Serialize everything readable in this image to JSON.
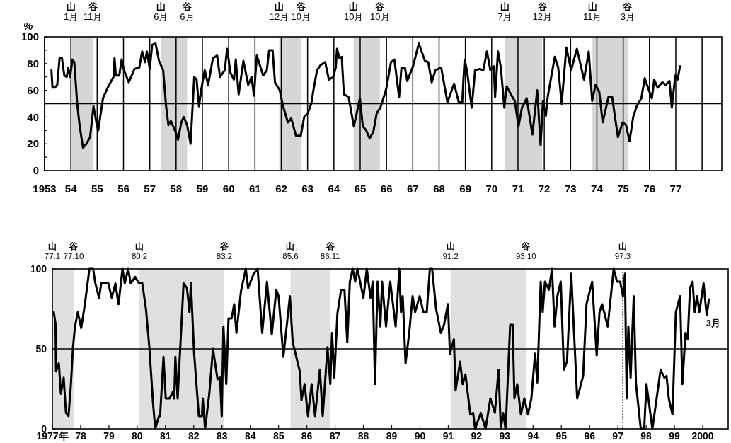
{
  "chart_data": [
    {
      "type": "line",
      "ylabel": "%",
      "xlim": [
        1953,
        1978.75
      ],
      "ylim": [
        0,
        100
      ],
      "grid": "x",
      "xticks": [
        {
          "value": 1953,
          "label": "1953"
        },
        {
          "value": 1954,
          "label": "54"
        },
        {
          "value": 1955,
          "label": "55"
        },
        {
          "value": 1956,
          "label": "56"
        },
        {
          "value": 1957,
          "label": "57"
        },
        {
          "value": 1958,
          "label": "58"
        },
        {
          "value": 1959,
          "label": "59"
        },
        {
          "value": 1960,
          "label": "60"
        },
        {
          "value": 1961,
          "label": "61"
        },
        {
          "value": 1962,
          "label": "62"
        },
        {
          "value": 1963,
          "label": "63"
        },
        {
          "value": 1964,
          "label": "64"
        },
        {
          "value": 1965,
          "label": "65"
        },
        {
          "value": 1966,
          "label": "66"
        },
        {
          "value": 1967,
          "label": "67"
        },
        {
          "value": 1968,
          "label": "68"
        },
        {
          "value": 1969,
          "label": "69"
        },
        {
          "value": 1970,
          "label": "70"
        },
        {
          "value": 1971,
          "label": "71"
        },
        {
          "value": 1972,
          "label": "72"
        },
        {
          "value": 1973,
          "label": "73"
        },
        {
          "value": 1974,
          "label": "74"
        },
        {
          "value": 1975,
          "label": "75"
        },
        {
          "value": 1976,
          "label": "76"
        },
        {
          "value": 1977,
          "label": "77"
        },
        {
          "value": 1978,
          "label": null
        }
      ],
      "yticks": [
        0,
        {
          "value": 10,
          "label": null
        },
        20,
        {
          "value": 30,
          "label": null
        },
        40,
        {
          "value": 50,
          "label": null
        },
        60,
        {
          "value": 70,
          "label": null
        },
        80,
        {
          "value": 90,
          "label": null
        },
        100
      ],
      "ref_lines": [
        {
          "axis": "y",
          "value": 50
        }
      ],
      "annotations": [
        "山\n1月",
        "谷\n11月",
        "山\n6月",
        "谷\n6月",
        "山\n12月",
        "谷\n10月",
        "山\n10月",
        "谷\n10月",
        "山\n7月",
        "谷\n12月",
        "山\n11月",
        "谷\n3月"
      ],
      "bands": [
        {
          "axis": "x",
          "from": 1954.0,
          "to": 1954.83,
          "color": "#d6d6d6"
        },
        {
          "axis": "x",
          "from": 1957.42,
          "to": 1958.42,
          "color": "#d6d6d6"
        },
        {
          "axis": "x",
          "from": 1961.92,
          "to": 1962.75,
          "color": "#d6d6d6"
        },
        {
          "axis": "x",
          "from": 1964.75,
          "to": 1965.75,
          "color": "#d6d6d6"
        },
        {
          "axis": "x",
          "from": 1970.5,
          "to": 1971.92,
          "color": "#d6d6d6"
        },
        {
          "axis": "x",
          "from": 1973.83,
          "to": 1975.17,
          "color": "#d6d6d6"
        }
      ],
      "x": [
        1953.26,
        1953.3,
        1953.39,
        1953.48,
        1953.57,
        1953.66,
        1953.75,
        1953.84,
        1953.9,
        1953.97,
        1954.06,
        1954.13,
        1954.24,
        1954.33,
        1954.46,
        1954.59,
        1954.73,
        1954.86,
        1954.97,
        1955.04,
        1955.22,
        1955.4,
        1955.62,
        1955.66,
        1955.71,
        1955.84,
        1955.93,
        1956.02,
        1956.2,
        1956.42,
        1956.6,
        1956.71,
        1956.82,
        1956.89,
        1957.0,
        1957.09,
        1957.22,
        1957.35,
        1957.51,
        1957.62,
        1957.71,
        1957.8,
        1957.98,
        1958.07,
        1958.2,
        1958.29,
        1958.42,
        1958.55,
        1958.69,
        1958.78,
        1958.87,
        1958.96,
        1959.09,
        1959.22,
        1959.4,
        1959.56,
        1959.67,
        1959.85,
        1959.94,
        1960.07,
        1960.2,
        1960.27,
        1960.38,
        1960.56,
        1960.74,
        1960.87,
        1960.96,
        1961.07,
        1961.31,
        1961.45,
        1961.54,
        1961.67,
        1961.76,
        1961.94,
        1962.07,
        1962.25,
        1962.38,
        1962.56,
        1962.74,
        1962.87,
        1963.01,
        1963.14,
        1963.23,
        1963.36,
        1963.5,
        1963.67,
        1963.81,
        1963.98,
        1964.07,
        1964.12,
        1964.21,
        1964.3,
        1964.38,
        1964.56,
        1964.76,
        1964.99,
        1965.1,
        1965.23,
        1965.36,
        1965.5,
        1965.63,
        1965.77,
        1965.99,
        1966.17,
        1966.3,
        1966.48,
        1966.57,
        1966.7,
        1966.79,
        1967.01,
        1967.23,
        1967.46,
        1967.59,
        1967.72,
        1967.86,
        1968.08,
        1968.32,
        1968.57,
        1968.75,
        1968.88,
        1968.97,
        1969.06,
        1969.24,
        1969.37,
        1969.55,
        1969.68,
        1969.82,
        1969.95,
        1970.08,
        1970.13,
        1970.24,
        1970.35,
        1970.48,
        1970.57,
        1970.7,
        1970.88,
        1971.02,
        1971.15,
        1971.33,
        1971.55,
        1971.73,
        1971.86,
        1971.95,
        1972.06,
        1972.13,
        1972.4,
        1972.53,
        1972.66,
        1972.84,
        1973.02,
        1973.24,
        1973.51,
        1973.69,
        1973.82,
        1973.95,
        1974.09,
        1974.22,
        1974.44,
        1974.58,
        1974.8,
        1974.98,
        1975.11,
        1975.24,
        1975.38,
        1975.51,
        1975.69,
        1975.82,
        1975.96,
        1976.09,
        1976.18,
        1976.31,
        1976.49,
        1976.62,
        1976.76,
        1976.85,
        1976.98,
        1977.07,
        1977.16
      ],
      "series": [
        {
          "color": "#000000",
          "values": [
            75,
            62,
            62,
            64,
            84,
            84,
            71,
            70,
            77,
            70,
            83,
            81,
            50,
            34,
            17,
            20,
            25,
            48,
            36,
            30,
            54,
            62,
            70,
            84,
            71,
            71,
            83,
            75,
            66,
            76,
            77,
            89,
            81,
            89,
            76,
            94,
            95,
            82,
            75,
            48,
            34,
            37,
            29,
            23,
            36,
            40,
            34,
            20,
            70,
            68,
            48,
            61,
            75,
            64,
            84,
            86,
            70,
            75,
            91,
            73,
            68,
            83,
            57,
            82,
            64,
            70,
            56,
            86,
            71,
            75,
            90,
            90,
            66,
            60,
            48,
            36,
            39,
            26,
            26,
            40,
            43,
            50,
            61,
            75,
            79,
            81,
            68,
            70,
            77,
            91,
            84,
            85,
            57,
            55,
            33,
            54,
            33,
            30,
            24,
            29,
            43,
            47,
            61,
            81,
            83,
            55,
            77,
            77,
            67,
            78,
            95,
            82,
            81,
            66,
            75,
            77,
            51,
            65,
            51,
            51,
            83,
            75,
            47,
            75,
            76,
            75,
            89,
            75,
            78,
            55,
            89,
            77,
            47,
            63,
            58,
            52,
            33,
            47,
            54,
            27,
            60,
            19,
            52,
            41,
            55,
            85,
            77,
            50,
            92,
            75,
            91,
            68,
            89,
            52,
            64,
            59,
            36,
            55,
            55,
            25,
            36,
            34,
            22,
            40,
            48,
            54,
            69,
            61,
            54,
            68,
            62,
            66,
            64,
            67,
            47,
            71,
            68,
            78
          ]
        }
      ]
    },
    {
      "type": "line",
      "xlim": [
        1977,
        2000.9
      ],
      "ylim": [
        0,
        100
      ],
      "xticks": [
        {
          "value": 1977,
          "label": "1977年"
        },
        {
          "value": 1978,
          "label": "78"
        },
        {
          "value": 1979,
          "label": "79"
        },
        {
          "value": 1980,
          "label": "80"
        },
        {
          "value": 1981,
          "label": "81"
        },
        {
          "value": 1982,
          "label": "82"
        },
        {
          "value": 1983,
          "label": "83"
        },
        {
          "value": 1984,
          "label": "84"
        },
        {
          "value": 1985,
          "label": "85"
        },
        {
          "value": 1986,
          "label": "86"
        },
        {
          "value": 1987,
          "label": "87"
        },
        {
          "value": 1988,
          "label": "88"
        },
        {
          "value": 1989,
          "label": "89"
        },
        {
          "value": 1990,
          "label": "90"
        },
        {
          "value": 1991,
          "label": "91"
        },
        {
          "value": 1992,
          "label": "92"
        },
        {
          "value": 1993,
          "label": "93"
        },
        {
          "value": 1994,
          "label": "94"
        },
        {
          "value": 1995,
          "label": "95"
        },
        {
          "value": 1996,
          "label": "96"
        },
        {
          "value": 1997,
          "label": "97"
        },
        {
          "value": 1998,
          "label": "98"
        },
        {
          "value": 1999,
          "label": "99"
        },
        {
          "value": 2000,
          "label": "2000"
        }
      ],
      "yticks": [
        0,
        50,
        100
      ],
      "ref_lines": [
        {
          "axis": "y",
          "value": 50
        },
        {
          "axis": "x",
          "value": 1997.17,
          "label": "山\n97.3",
          "color": "#555555",
          "line_style": "dotted"
        }
      ],
      "bands": [
        {
          "axis": "x",
          "from": 1977.0,
          "to": 1977.75,
          "color": "#e0e0e0"
        },
        {
          "axis": "x",
          "from": 1980.08,
          "to": 1983.08,
          "color": "#e0e0e0"
        },
        {
          "axis": "x",
          "from": 1985.42,
          "to": 1986.83,
          "color": "#e0e0e0"
        },
        {
          "axis": "x",
          "from": 1991.08,
          "to": 1993.75,
          "color": "#e0e0e0"
        }
      ],
      "annotations": [
        "山\n77.1",
        "谷\n77.10",
        "山\n80.2",
        "谷\n83.2",
        "山\n85.6",
        "谷\n86.11",
        "山\n91.2",
        "谷\n93.10",
        {
          "text": "3月",
          "x": 2000.22,
          "y": 81
        }
      ],
      "x": [
        1977.05,
        1977.11,
        1977.13,
        1977.23,
        1977.3,
        1977.4,
        1977.48,
        1977.57,
        1977.65,
        1977.73,
        1977.8,
        1977.9,
        1978.02,
        1978.15,
        1978.31,
        1978.44,
        1978.52,
        1978.65,
        1978.73,
        1978.98,
        1979.1,
        1979.23,
        1979.34,
        1979.48,
        1979.56,
        1979.68,
        1979.77,
        1979.93,
        1980.06,
        1980.18,
        1980.31,
        1980.43,
        1980.56,
        1980.64,
        1980.77,
        1980.81,
        1980.93,
        1981.01,
        1981.14,
        1981.26,
        1981.31,
        1981.35,
        1981.43,
        1981.64,
        1981.76,
        1981.85,
        1981.9,
        1982.01,
        1982.18,
        1982.29,
        1982.32,
        1982.4,
        1982.55,
        1982.68,
        1982.84,
        1982.93,
        1982.99,
        1983.05,
        1983.15,
        1983.23,
        1983.34,
        1983.43,
        1983.51,
        1983.67,
        1983.84,
        1983.92,
        1984.12,
        1984.26,
        1984.42,
        1984.59,
        1984.76,
        1984.92,
        1985.0,
        1985.17,
        1985.4,
        1985.5,
        1985.75,
        1985.81,
        1985.92,
        1986.04,
        1986.17,
        1986.29,
        1986.46,
        1986.56,
        1986.73,
        1986.83,
        1986.89,
        1986.97,
        1987.08,
        1987.21,
        1987.33,
        1987.43,
        1987.52,
        1987.62,
        1987.71,
        1987.79,
        1988.0,
        1988.12,
        1988.25,
        1988.33,
        1988.41,
        1988.5,
        1988.6,
        1988.66,
        1988.8,
        1988.95,
        1989.14,
        1989.27,
        1989.33,
        1989.39,
        1989.49,
        1989.62,
        1989.74,
        1989.83,
        1989.99,
        1990.12,
        1990.24,
        1990.35,
        1990.43,
        1990.57,
        1990.74,
        1990.85,
        1990.99,
        1991.06,
        1991.2,
        1991.26,
        1991.42,
        1991.51,
        1991.61,
        1991.78,
        1991.88,
        1991.95,
        1992.15,
        1992.32,
        1992.49,
        1992.65,
        1992.78,
        1992.86,
        1992.94,
        1993.03,
        1993.19,
        1993.28,
        1993.34,
        1993.44,
        1993.57,
        1993.69,
        1993.82,
        1993.94,
        1994.07,
        1994.15,
        1994.27,
        1994.34,
        1994.42,
        1994.56,
        1994.67,
        1994.76,
        1994.86,
        1994.98,
        1995.09,
        1995.2,
        1995.35,
        1995.56,
        1995.77,
        1995.89,
        1996.09,
        1996.25,
        1996.35,
        1996.44,
        1996.64,
        1996.85,
        1996.97,
        1997.08,
        1997.18,
        1997.25,
        1997.31,
        1997.37,
        1997.45,
        1997.56,
        1997.64,
        1997.81,
        1997.93,
        1998.01,
        1998.22,
        1998.51,
        1998.64,
        1998.72,
        1998.8,
        1998.93,
        1999.05,
        1999.2,
        1999.28,
        1999.39,
        1999.47,
        1999.55,
        1999.64,
        1999.72,
        1999.8,
        1999.88,
        2000.03,
        2000.14,
        2000.22
      ],
      "series": [
        {
          "color": "#000000",
          "values": [
            73,
            66,
            36,
            41,
            22,
            32,
            10,
            8,
            26,
            51,
            64,
            73,
            63,
            78,
            100,
            100,
            91,
            82,
            91,
            91,
            82,
            91,
            78,
            100,
            91,
            100,
            91,
            95,
            91,
            91,
            75,
            51,
            16,
            0,
            8,
            8,
            45,
            19,
            19,
            23,
            19,
            45,
            19,
            91,
            88,
            73,
            91,
            48,
            8,
            8,
            19,
            0,
            22,
            50,
            31,
            32,
            8,
            64,
            28,
            69,
            69,
            78,
            60,
            86,
            100,
            88,
            97,
            100,
            60,
            92,
            59,
            87,
            83,
            45,
            83,
            54,
            36,
            18,
            28,
            8,
            28,
            8,
            37,
            8,
            51,
            28,
            60,
            32,
            72,
            87,
            87,
            54,
            92,
            100,
            92,
            100,
            82,
            100,
            82,
            92,
            28,
            92,
            64,
            92,
            64,
            92,
            64,
            100,
            73,
            83,
            41,
            60,
            83,
            73,
            83,
            73,
            73,
            100,
            100,
            75,
            60,
            65,
            78,
            47,
            56,
            24,
            42,
            28,
            34,
            9,
            10,
            0,
            10,
            0,
            19,
            10,
            37,
            0,
            10,
            0,
            65,
            65,
            19,
            28,
            9,
            19,
            9,
            19,
            47,
            29,
            92,
            73,
            92,
            87,
            100,
            64,
            83,
            92,
            37,
            42,
            97,
            19,
            33,
            78,
            92,
            46,
            73,
            78,
            64,
            100,
            92,
            92,
            83,
            97,
            19,
            64,
            32,
            83,
            28,
            0,
            0,
            28,
            0,
            37,
            32,
            33,
            19,
            9,
            73,
            83,
            28,
            60,
            56,
            88,
            92,
            73,
            83,
            73,
            91,
            71,
            81
          ]
        }
      ]
    }
  ]
}
